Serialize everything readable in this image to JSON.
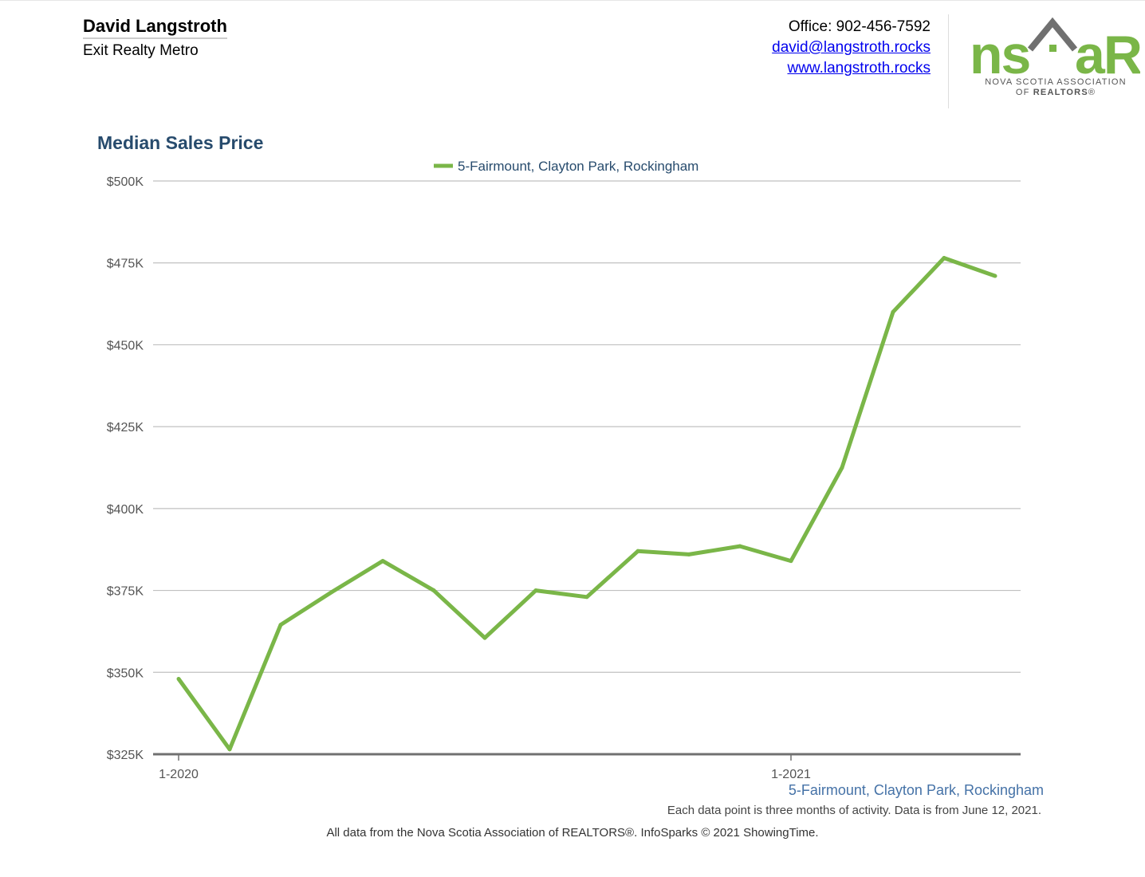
{
  "header": {
    "agent_name": "David Langstroth",
    "agent_company": "Exit Realty Metro",
    "office": "Office: 902-456-7592",
    "email": "david@langstroth.rocks",
    "website": "www.langstroth.rocks"
  },
  "logo": {
    "left_text": "ns",
    "right_text": "aR",
    "line1": "NOVA SCOTIA ASSOCIATION",
    "line2_prefix": "OF ",
    "line2_bold": "REALTORS",
    "line2_suffix": "®",
    "green": "#7ab648",
    "gray": "#707070"
  },
  "footer": {
    "series_label": "5-Fairmount, Clayton Park, Rockingham",
    "note": "Each data point is three months of activity. Data is from June 12, 2021.",
    "credit": "All data from the Nova Scotia Association of REALTORS®. InfoSparks © 2021 ShowingTime."
  },
  "chart_data": {
    "type": "line",
    "title": "Median Sales Price",
    "xlabel": "",
    "ylabel": "",
    "x": [
      "1-2020",
      "2-2020",
      "3-2020",
      "4-2020",
      "5-2020",
      "6-2020",
      "7-2020",
      "8-2020",
      "9-2020",
      "10-2020",
      "11-2020",
      "12-2020",
      "1-2021",
      "2-2021",
      "3-2021",
      "4-2021",
      "5-2021"
    ],
    "x_tick_labels": [
      "1-2020",
      "1-2021"
    ],
    "series": [
      {
        "name": "5-Fairmount, Clayton Park, Rockingham",
        "color": "#7ab648",
        "values": [
          348000,
          326500,
          364500,
          374500,
          384000,
          375000,
          360500,
          375000,
          373000,
          387000,
          386000,
          388500,
          384000,
          412500,
          460000,
          476500,
          471000
        ]
      }
    ],
    "ylim": [
      325000,
      500000
    ],
    "y_ticks": [
      325000,
      350000,
      375000,
      400000,
      425000,
      450000,
      475000,
      500000
    ],
    "y_tick_labels": [
      "$325K",
      "$350K",
      "$375K",
      "$400K",
      "$425K",
      "$450K",
      "$475K",
      "$500K"
    ],
    "grid": true,
    "legend": "top-center"
  }
}
